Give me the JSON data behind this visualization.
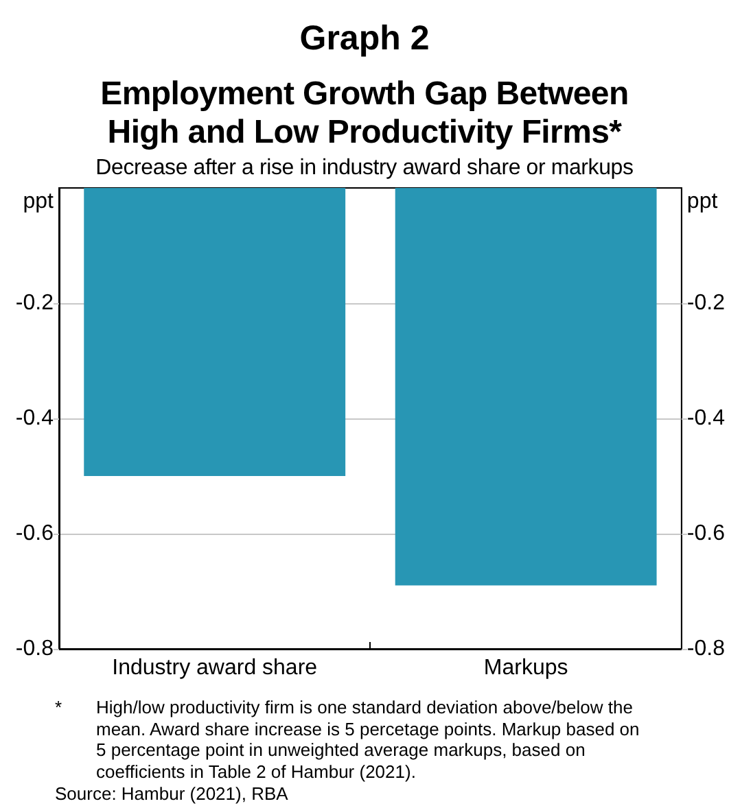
{
  "chart_data": {
    "type": "bar",
    "title": "Graph 2\nEmployment Growth Gap Between High and Low Productivity Firms*",
    "subtitle": "Decrease after a rise in industry award share or markups",
    "ylabel": "ppt",
    "y2label": "ppt",
    "categories": [
      "Industry award share",
      "Markups"
    ],
    "values": [
      -0.5,
      -0.69
    ],
    "color": "#2896b4",
    "ylim": [
      -0.8,
      0
    ],
    "yticks": [
      -0.8,
      -0.6,
      -0.4,
      -0.2
    ],
    "y2lim": [
      -0.8,
      0
    ],
    "y2ticks": [
      -0.8,
      -0.6,
      -0.4,
      -0.2
    ],
    "grid": "y",
    "annotations": [
      "* High/low productivity firm is one standard deviation above/below the mean. Award share increase is 5 percetage points. Markup based on 5 percentage point in unweighted average markups, based on coefficients in Table 2 of Hambur (2021).",
      "Source: Hambur (2021), RBA"
    ]
  }
}
